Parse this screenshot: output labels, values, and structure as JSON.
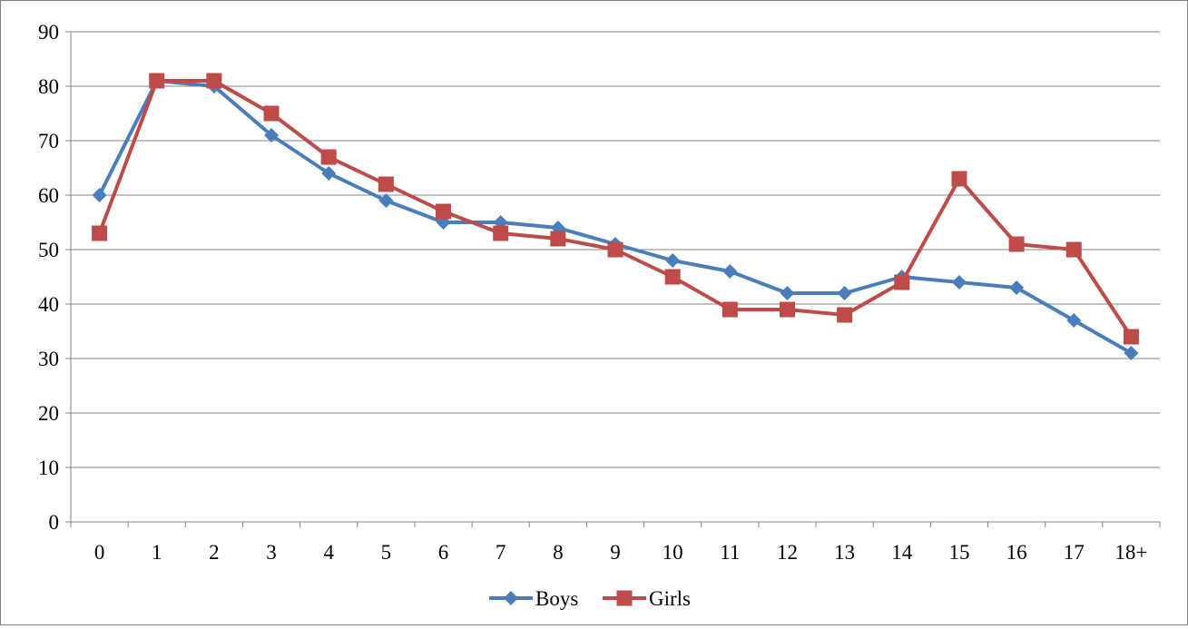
{
  "chart_data": {
    "type": "line",
    "categories": [
      "0",
      "1",
      "2",
      "3",
      "4",
      "5",
      "6",
      "7",
      "8",
      "9",
      "10",
      "11",
      "12",
      "13",
      "14",
      "15",
      "16",
      "17",
      "18+"
    ],
    "series": [
      {
        "name": "Boys",
        "color": "#4a7ebb",
        "marker": "diamond",
        "values": [
          60,
          81,
          80,
          71,
          64,
          59,
          55,
          55,
          54,
          51,
          48,
          46,
          42,
          42,
          45,
          44,
          43,
          37,
          31
        ]
      },
      {
        "name": "Girls",
        "color": "#be4b48",
        "marker": "square",
        "values": [
          53,
          81,
          81,
          75,
          67,
          62,
          57,
          53,
          52,
          50,
          45,
          39,
          39,
          38,
          44,
          63,
          51,
          50,
          34
        ]
      }
    ],
    "ylim": [
      0,
      90
    ],
    "yticks": [
      "0",
      "10",
      "20",
      "30",
      "40",
      "50",
      "60",
      "70",
      "80",
      "90"
    ],
    "grid": true,
    "legend": "bottom"
  }
}
